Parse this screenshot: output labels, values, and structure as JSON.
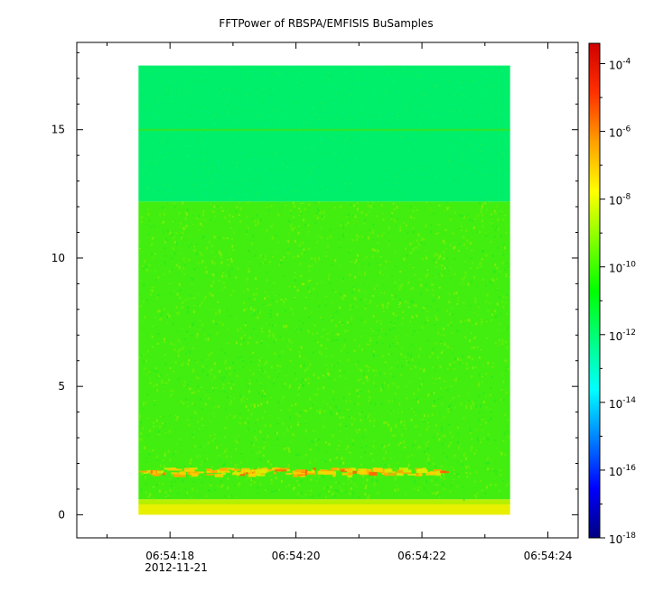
{
  "chart_data": {
    "type": "heatmap",
    "title": "FFTPower of RBSPA/EMFISIS  BuSamples",
    "xlabel": "",
    "ylabel": "",
    "x_ticks": [
      "06:54:18",
      "06:54:20",
      "06:54:22",
      "06:54:24"
    ],
    "x_tick_seconds": [
      18,
      20,
      22,
      24
    ],
    "x_date_label": "2012-11-21",
    "xlim_seconds": [
      16.52,
      24.48
    ],
    "data_x_range_seconds": [
      17.5,
      23.4
    ],
    "y_ticks": [
      0,
      5,
      10,
      15
    ],
    "ylim": [
      -0.9,
      18.4
    ],
    "data_y_range": [
      0,
      17.5
    ],
    "colorbar": {
      "scale": "log",
      "range": [
        "1e-18",
        "1e-3.4"
      ],
      "ticks": [
        {
          "base": "10",
          "exp": "-4"
        },
        {
          "base": "10",
          "exp": "-6"
        },
        {
          "base": "10",
          "exp": "-8"
        },
        {
          "base": "10",
          "exp": "-10"
        },
        {
          "base": "10",
          "exp": "-12"
        },
        {
          "base": "10",
          "exp": "-14"
        },
        {
          "base": "10",
          "exp": "-16"
        },
        {
          "base": "10",
          "exp": "-18"
        }
      ],
      "tick_exponents": [
        -4,
        -6,
        -8,
        -10,
        -12,
        -14,
        -16,
        -18
      ],
      "colors": [
        "#00007f",
        "#0000ff",
        "#0080ff",
        "#00ffff",
        "#00ff80",
        "#00ff00",
        "#80ff00",
        "#ffff00",
        "#ffa000",
        "#ff3000",
        "#d00000"
      ]
    },
    "regions": [
      {
        "y_range": [
          12.2,
          17.5
        ],
        "log_power": -11.6,
        "color": "#00ef6a"
      },
      {
        "y_range": [
          0.6,
          12.2
        ],
        "log_power": -10.2,
        "color": "#42ee10"
      },
      {
        "y_range": [
          0,
          0.4
        ],
        "log_power": -8.5,
        "color": "#e8f000"
      }
    ],
    "features": [
      {
        "type": "line",
        "y": 15.0,
        "log_power": -10.6
      },
      {
        "type": "band",
        "y": 1.7,
        "x_range_seconds": [
          17.5,
          22.4
        ],
        "log_power": -7.5
      }
    ]
  }
}
